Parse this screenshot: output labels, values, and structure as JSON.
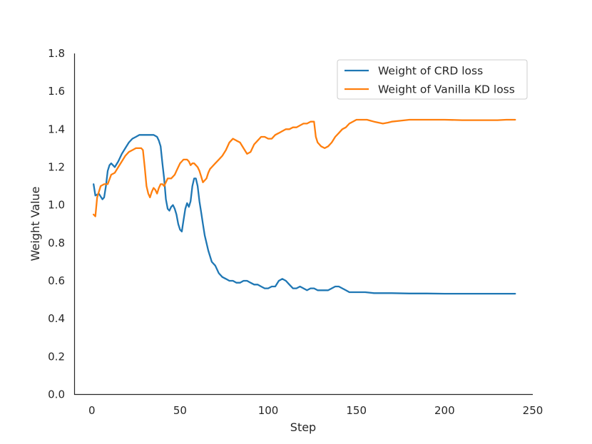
{
  "chart_data": {
    "type": "line",
    "title": "",
    "xlabel": "Step",
    "ylabel": "Weight Value",
    "xlim": [
      -10,
      250
    ],
    "ylim": [
      0.0,
      1.8
    ],
    "xticks": [
      0,
      50,
      100,
      150,
      200,
      250
    ],
    "yticks": [
      0.0,
      0.2,
      0.4,
      0.6,
      0.8,
      1.0,
      1.2,
      1.4,
      1.6,
      1.8
    ],
    "xtick_labels": [
      "0",
      "50",
      "100",
      "150",
      "200",
      "250"
    ],
    "ytick_labels": [
      "0.0",
      "0.2",
      "0.4",
      "0.6",
      "0.8",
      "1.0",
      "1.2",
      "1.4",
      "1.6",
      "1.8"
    ],
    "grid": false,
    "legend_position": "top-right",
    "series": [
      {
        "name": "Weight of CRD loss",
        "color": "#1f77b4",
        "x": [
          1,
          2,
          4,
          6,
          7,
          8,
          9,
          10,
          11,
          12,
          13,
          15,
          17,
          19,
          21,
          23,
          25,
          27,
          29,
          31,
          33,
          35,
          37,
          38,
          39,
          40,
          41,
          42,
          43,
          44,
          45,
          46,
          47,
          48,
          49,
          50,
          51,
          52,
          53,
          54,
          55,
          56,
          57,
          58,
          59,
          60,
          61,
          62,
          63,
          64,
          65,
          66,
          68,
          70,
          72,
          74,
          76,
          78,
          80,
          82,
          84,
          86,
          88,
          90,
          92,
          94,
          96,
          98,
          100,
          102,
          104,
          106,
          108,
          110,
          112,
          114,
          116,
          118,
          120,
          122,
          124,
          126,
          128,
          130,
          132,
          134,
          136,
          138,
          140,
          142,
          144,
          146,
          148,
          150,
          152,
          155,
          160,
          170,
          180,
          190,
          200,
          210,
          220,
          230,
          240
        ],
        "values": [
          1.11,
          1.05,
          1.06,
          1.03,
          1.04,
          1.1,
          1.18,
          1.21,
          1.22,
          1.21,
          1.2,
          1.23,
          1.27,
          1.3,
          1.33,
          1.35,
          1.36,
          1.37,
          1.37,
          1.37,
          1.37,
          1.37,
          1.36,
          1.34,
          1.31,
          1.22,
          1.14,
          1.03,
          0.98,
          0.97,
          0.99,
          1.0,
          0.98,
          0.95,
          0.9,
          0.87,
          0.86,
          0.92,
          0.98,
          1.01,
          0.99,
          1.02,
          1.1,
          1.14,
          1.14,
          1.1,
          1.02,
          0.96,
          0.9,
          0.84,
          0.8,
          0.76,
          0.7,
          0.68,
          0.64,
          0.62,
          0.61,
          0.6,
          0.6,
          0.59,
          0.59,
          0.6,
          0.6,
          0.59,
          0.58,
          0.58,
          0.57,
          0.56,
          0.56,
          0.57,
          0.57,
          0.6,
          0.61,
          0.6,
          0.58,
          0.56,
          0.56,
          0.57,
          0.56,
          0.55,
          0.56,
          0.56,
          0.55,
          0.55,
          0.55,
          0.55,
          0.56,
          0.57,
          0.57,
          0.56,
          0.55,
          0.54,
          0.54,
          0.54,
          0.54,
          0.54,
          0.535,
          0.535,
          0.533,
          0.533,
          0.532,
          0.532,
          0.532,
          0.532,
          0.532
        ]
      },
      {
        "name": "Weight of Vanilla KD loss",
        "color": "#ff7f0e",
        "x": [
          1,
          2,
          3,
          5,
          7,
          9,
          11,
          13,
          15,
          17,
          19,
          21,
          23,
          25,
          27,
          28,
          29,
          30,
          31,
          32,
          33,
          34,
          35,
          36,
          37,
          38,
          39,
          40,
          41,
          42,
          43,
          44,
          45,
          46,
          47,
          48,
          49,
          50,
          51,
          52,
          53,
          54,
          55,
          56,
          57,
          58,
          59,
          60,
          61,
          62,
          63,
          64,
          65,
          66,
          67,
          68,
          70,
          72,
          74,
          76,
          78,
          80,
          82,
          84,
          86,
          88,
          90,
          92,
          94,
          96,
          98,
          100,
          102,
          104,
          106,
          108,
          110,
          112,
          114,
          116,
          118,
          120,
          122,
          124,
          126,
          127,
          128,
          130,
          132,
          134,
          136,
          138,
          140,
          142,
          144,
          146,
          148,
          150,
          152,
          154,
          156,
          158,
          160,
          165,
          168,
          170,
          175,
          180,
          190,
          200,
          210,
          220,
          230,
          235,
          240
        ],
        "values": [
          0.95,
          0.94,
          1.04,
          1.1,
          1.11,
          1.11,
          1.16,
          1.17,
          1.2,
          1.23,
          1.26,
          1.28,
          1.29,
          1.3,
          1.3,
          1.3,
          1.29,
          1.2,
          1.1,
          1.06,
          1.04,
          1.07,
          1.09,
          1.08,
          1.06,
          1.09,
          1.11,
          1.11,
          1.1,
          1.12,
          1.14,
          1.14,
          1.14,
          1.15,
          1.16,
          1.18,
          1.2,
          1.22,
          1.23,
          1.24,
          1.24,
          1.24,
          1.23,
          1.21,
          1.22,
          1.22,
          1.21,
          1.2,
          1.18,
          1.15,
          1.12,
          1.13,
          1.14,
          1.17,
          1.19,
          1.2,
          1.22,
          1.24,
          1.26,
          1.29,
          1.33,
          1.35,
          1.34,
          1.33,
          1.3,
          1.27,
          1.28,
          1.32,
          1.34,
          1.36,
          1.36,
          1.35,
          1.35,
          1.37,
          1.38,
          1.39,
          1.4,
          1.4,
          1.41,
          1.41,
          1.42,
          1.43,
          1.43,
          1.44,
          1.44,
          1.36,
          1.33,
          1.31,
          1.3,
          1.31,
          1.33,
          1.36,
          1.38,
          1.4,
          1.41,
          1.43,
          1.44,
          1.45,
          1.45,
          1.45,
          1.45,
          1.445,
          1.44,
          1.43,
          1.435,
          1.44,
          1.445,
          1.45,
          1.45,
          1.45,
          1.448,
          1.448,
          1.448,
          1.45,
          1.45
        ]
      }
    ]
  }
}
